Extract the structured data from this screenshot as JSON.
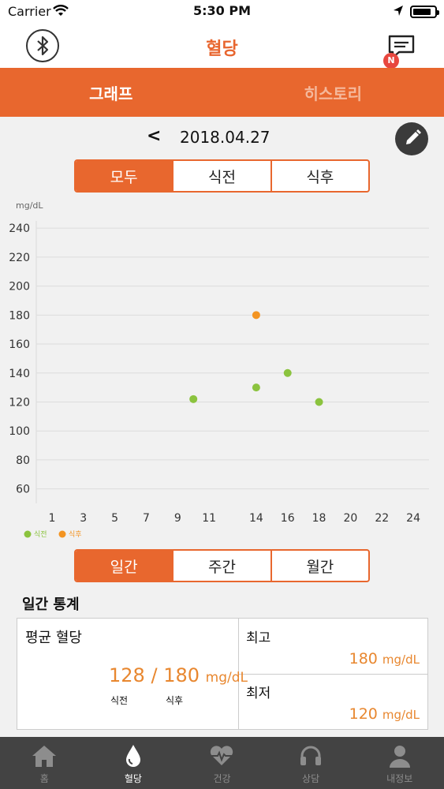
{
  "status_bar": {
    "carrier": "Carrier",
    "time": "5:30 PM",
    "battery_level": 0.85
  },
  "nav": {
    "title": "혈당",
    "badge": "N"
  },
  "main_tabs": [
    {
      "label": "그래프",
      "active": true
    },
    {
      "label": "히스토리",
      "active": false
    }
  ],
  "date": {
    "prev": "<",
    "value": "2018.04.27"
  },
  "filter_tabs": [
    {
      "label": "모두",
      "active": true
    },
    {
      "label": "식전",
      "active": false
    },
    {
      "label": "식후",
      "active": false
    }
  ],
  "chart_data": {
    "type": "scatter",
    "ylabel": "mg/dL",
    "ylim": [
      50,
      245
    ],
    "yticks": [
      240,
      220,
      200,
      180,
      160,
      140,
      120,
      100,
      80,
      60
    ],
    "xlim": [
      0,
      25
    ],
    "xticks": [
      1,
      3,
      5,
      7,
      9,
      11,
      14,
      16,
      18,
      20,
      22,
      24
    ],
    "grid": true,
    "legend_position": "bottom-left",
    "series": [
      {
        "name": "식전",
        "color": "#8bc33e",
        "points": [
          [
            10,
            122
          ],
          [
            14,
            130
          ],
          [
            16,
            140
          ],
          [
            18,
            120
          ]
        ]
      },
      {
        "name": "식후",
        "color": "#f39422",
        "points": [
          [
            14,
            180
          ]
        ]
      }
    ]
  },
  "period_tabs": [
    {
      "label": "일간",
      "active": true
    },
    {
      "label": "주간",
      "active": false
    },
    {
      "label": "월간",
      "active": false
    }
  ],
  "stats": {
    "title": "일간 통계",
    "avg_label": "평균 혈당",
    "avg_before": "128",
    "slash": "/",
    "avg_after": "180",
    "unit": "mg/dL",
    "before_label": "식전",
    "after_label": "식후",
    "max_label": "최고",
    "max_value": "180",
    "min_label": "최저",
    "min_value": "120"
  },
  "bottom_nav": [
    {
      "label": "홈",
      "icon": "home-icon",
      "active": false
    },
    {
      "label": "혈당",
      "icon": "drop-icon",
      "active": true
    },
    {
      "label": "건강",
      "icon": "heart-icon",
      "active": false
    },
    {
      "label": "상담",
      "icon": "headset-icon",
      "active": false
    },
    {
      "label": "내정보",
      "icon": "person-icon",
      "active": false
    }
  ]
}
